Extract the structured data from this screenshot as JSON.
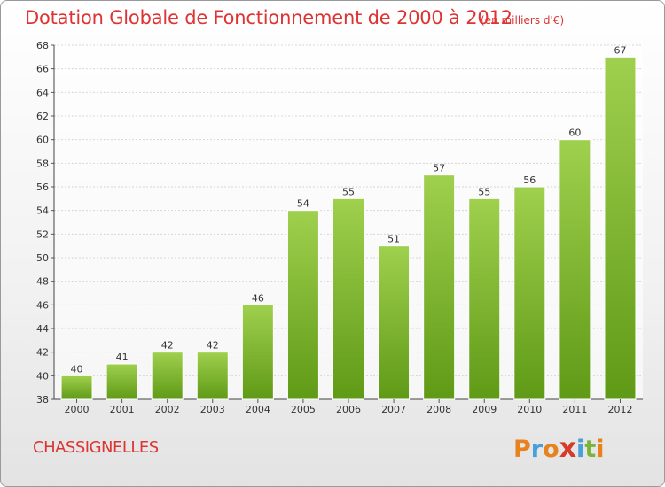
{
  "chart_data": {
    "type": "bar",
    "title": "Dotation Globale de Fonctionnement de 2000 à 2012",
    "subtitle": "(en milliers d'€)",
    "categories": [
      "2000",
      "2001",
      "2002",
      "2003",
      "2004",
      "2005",
      "2006",
      "2007",
      "2008",
      "2009",
      "2010",
      "2011",
      "2012"
    ],
    "values": [
      40,
      41,
      42,
      42,
      46,
      54,
      55,
      51,
      57,
      55,
      56,
      60,
      67
    ],
    "ylim": [
      38,
      68
    ],
    "yticks": [
      38,
      40,
      42,
      44,
      46,
      48,
      50,
      52,
      54,
      56,
      58,
      60,
      62,
      64,
      66,
      68
    ],
    "grid": true,
    "bar_color": "#7fb832",
    "bar_color_light": "#9fd04e",
    "bar_color_dark": "#5f9a16"
  },
  "footer": {
    "commune": "CHASSIGNELLES",
    "logo_letters": [
      "P",
      "r",
      "o",
      "x",
      "i",
      "t",
      "i"
    ],
    "logo_colors": [
      "#e8821e",
      "#4a9fd8",
      "#e8821e",
      "#d63a2a",
      "#4a9fd8",
      "#7ab53a",
      "#e8821e"
    ]
  }
}
